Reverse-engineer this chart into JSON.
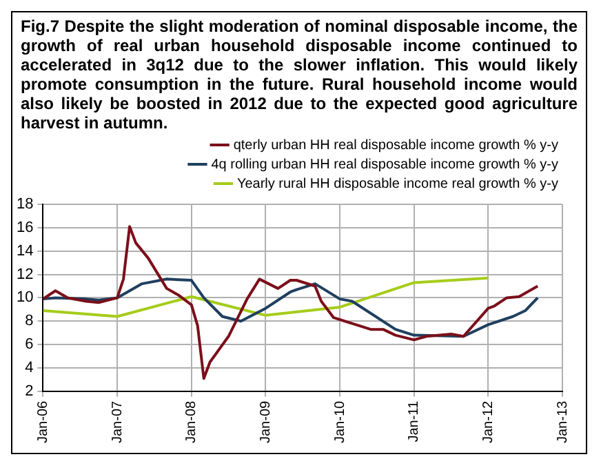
{
  "chart_data": {
    "type": "line",
    "title": "Fig.7 Despite the slight moderation of nominal disposable income, the growth of real urban household disposable income continued to accelerated in 3q12 due to the slower inflation. This would likely promote consumption in the future. Rural household income would also likely be boosted in 2012 due to the expected good agriculture harvest in autumn.",
    "series": [
      {
        "name": "qterly urban HH real disposable income growth % y-y",
        "color": "#7b0f1a",
        "x": [
          "2006-01",
          "2006-03",
          "2006-05",
          "2006-08",
          "2006-10",
          "2007-01",
          "2007-02",
          "2007-03",
          "2007-04",
          "2007-06",
          "2007-09",
          "2007-11",
          "2008-01",
          "2008-02",
          "2008-03",
          "2008-04",
          "2008-07",
          "2008-10",
          "2008-12",
          "2009-03",
          "2009-05",
          "2009-06",
          "2009-09",
          "2009-10",
          "2009-12",
          "2010-03",
          "2010-06",
          "2010-08",
          "2010-10",
          "2011-01",
          "2011-03",
          "2011-07",
          "2011-09",
          "2012-01",
          "2012-02",
          "2012-04",
          "2012-06",
          "2012-09"
        ],
        "values": [
          9.9,
          10.6,
          10.0,
          9.7,
          9.6,
          10.0,
          11.6,
          16.1,
          14.7,
          13.4,
          10.8,
          10.2,
          9.4,
          7.6,
          3.1,
          4.5,
          6.7,
          9.9,
          11.6,
          10.8,
          11.5,
          11.5,
          11.0,
          9.7,
          8.3,
          7.8,
          7.3,
          7.3,
          6.8,
          6.4,
          6.7,
          6.9,
          6.7,
          9.1,
          9.3,
          10.0,
          10.1,
          11.0
        ]
      },
      {
        "name": "4q rolling urban HH real disposable income growth % y-y",
        "color": "#1f3f5f",
        "x": [
          "2006-01",
          "2006-03",
          "2006-08",
          "2006-10",
          "2007-01",
          "2007-05",
          "2007-09",
          "2008-01",
          "2008-03",
          "2008-06",
          "2008-09",
          "2009-01",
          "2009-05",
          "2009-06",
          "2009-09",
          "2010-01",
          "2010-03",
          "2010-10",
          "2011-01",
          "2011-09",
          "2012-01",
          "2012-05",
          "2012-07",
          "2012-09"
        ],
        "values": [
          9.9,
          10.0,
          9.9,
          9.8,
          10.0,
          11.2,
          11.6,
          11.5,
          10.0,
          8.4,
          8.0,
          9.1,
          10.5,
          10.7,
          11.2,
          9.9,
          9.7,
          7.3,
          6.8,
          6.7,
          7.7,
          8.4,
          8.9,
          10.0
        ]
      },
      {
        "name": "Yearly rural HH disposable income real growth % y-y",
        "color": "#a6cc1a",
        "x": [
          "2006-01",
          "2007-01",
          "2008-01",
          "2009-01",
          "2010-01",
          "2011-01",
          "2012-01"
        ],
        "values": [
          8.9,
          8.4,
          10.1,
          8.5,
          9.2,
          11.3,
          11.7
        ]
      }
    ],
    "xlim": [
      "2006-01",
      "2013-01"
    ],
    "xticks": [
      {
        "value": "2006-01",
        "label": "Jan-06"
      },
      {
        "value": "2007-01",
        "label": "Jan-07"
      },
      {
        "value": "2008-01",
        "label": "Jan-08"
      },
      {
        "value": "2009-01",
        "label": "Jan-09"
      },
      {
        "value": "2010-01",
        "label": "Jan-10"
      },
      {
        "value": "2011-01",
        "label": "Jan-11"
      },
      {
        "value": "2012-01",
        "label": "Jan-12"
      },
      {
        "value": "2013-01",
        "label": "Jan-13"
      }
    ],
    "ylim": [
      2,
      18
    ],
    "yticks": [
      2,
      4,
      6,
      8,
      10,
      12,
      14,
      16,
      18
    ],
    "grid": true,
    "legend": "top",
    "marker": "none",
    "line_style": "solid"
  }
}
